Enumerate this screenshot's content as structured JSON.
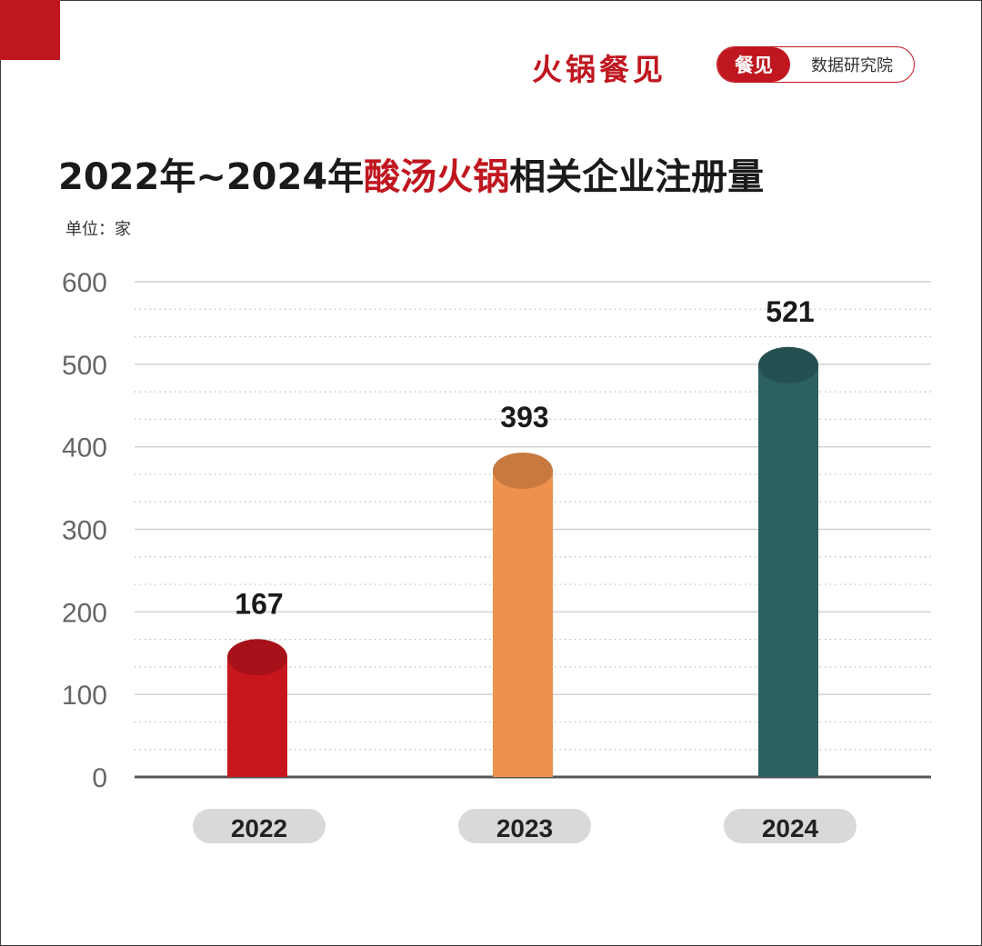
{
  "header": {
    "brand": "火锅餐见",
    "badge_left": "餐见",
    "badge_right": "数据研究院"
  },
  "title": {
    "part1": "2022年~2024年",
    "highlight": "酸汤火锅",
    "part2": "相关企业注册量"
  },
  "unit_label": "单位：家",
  "colors": {
    "accent": "#c0161f",
    "bar_2022": "#c8161f",
    "bar_2023": "#ee914d",
    "bar_2024": "#2c6061"
  },
  "chart_data": {
    "type": "bar",
    "title": "2022年~2024年酸汤火锅相关企业注册量",
    "ylabel": "单位：家",
    "xlabel": "",
    "categories": [
      "2022",
      "2023",
      "2024"
    ],
    "values": [
      167,
      393,
      521
    ],
    "ylim": [
      0,
      600
    ],
    "yticks": [
      0,
      100,
      200,
      300,
      400,
      500,
      600
    ],
    "grid": true,
    "legend": "none"
  }
}
